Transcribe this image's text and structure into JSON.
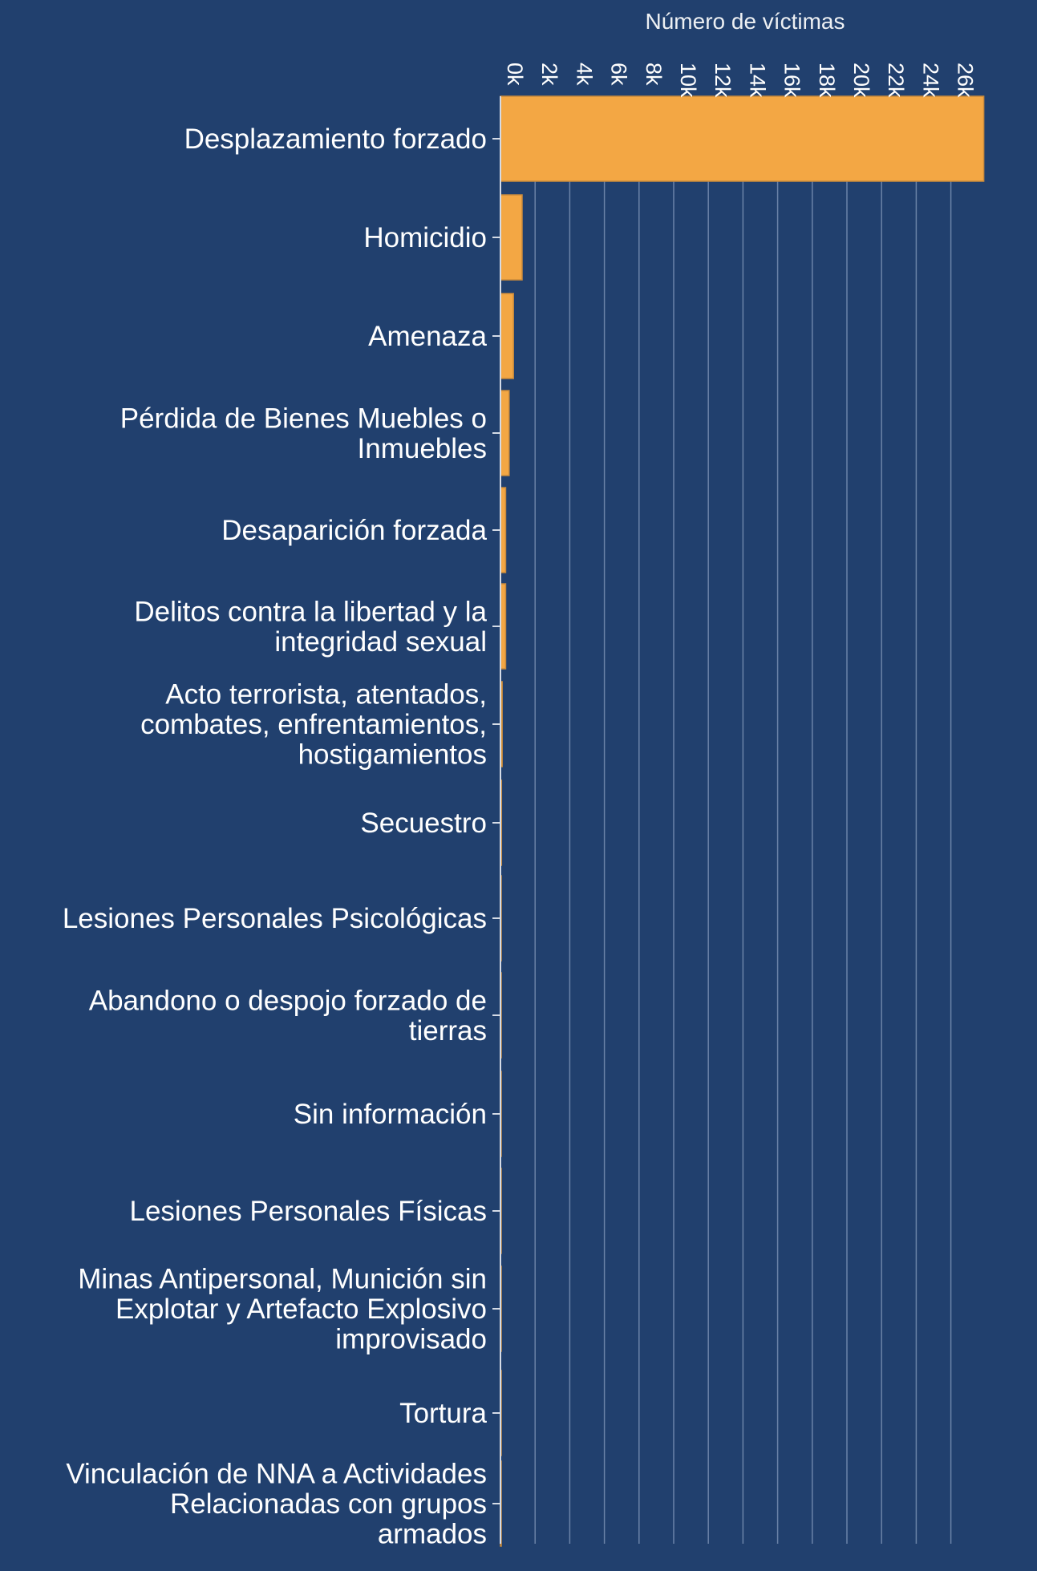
{
  "chart_data": {
    "type": "bar",
    "orientation": "horizontal",
    "title": "",
    "xlabel": "Número de víctimas",
    "ylabel": "",
    "xlim": [
      0,
      28000
    ],
    "xticks": [
      0,
      2000,
      4000,
      6000,
      8000,
      10000,
      12000,
      14000,
      16000,
      18000,
      20000,
      22000,
      24000,
      26000
    ],
    "xtick_labels": [
      "0k",
      "2k",
      "4k",
      "6k",
      "8k",
      "10k",
      "12k",
      "14k",
      "16k",
      "18k",
      "20k",
      "22k",
      "24k",
      "26k"
    ],
    "grid": true,
    "bar_color": "#f3a744",
    "categories": [
      [
        "Desplazamiento forzado"
      ],
      [
        "Homicidio"
      ],
      [
        "Amenaza"
      ],
      [
        "Pérdida de Bienes Muebles o",
        "Inmuebles"
      ],
      [
        "Desaparición forzada"
      ],
      [
        "Delitos contra la libertad y la",
        "integridad sexual"
      ],
      [
        "Acto terrorista, atentados,",
        "combates, enfrentamientos,",
        "hostigamientos"
      ],
      [
        "Secuestro"
      ],
      [
        "Lesiones Personales Psicológicas"
      ],
      [
        "Abandono o despojo forzado de",
        "tierras"
      ],
      [
        "Sin información"
      ],
      [
        "Lesiones Personales Físicas"
      ],
      [
        "Minas Antipersonal, Munición sin",
        "Explotar y Artefacto Explosivo",
        "improvisado"
      ],
      [
        "Tortura"
      ],
      [
        "Vinculación de NNA a Actividades",
        "Relacionadas con grupos",
        "armados"
      ]
    ],
    "values": [
      27900,
      1250,
      750,
      500,
      300,
      300,
      100,
      60,
      40,
      30,
      20,
      15,
      10,
      8,
      5
    ]
  },
  "colors": {
    "background": "#21406e",
    "bar": "#f3a744",
    "text": "#ffffff",
    "grid": "#6b83a8"
  }
}
